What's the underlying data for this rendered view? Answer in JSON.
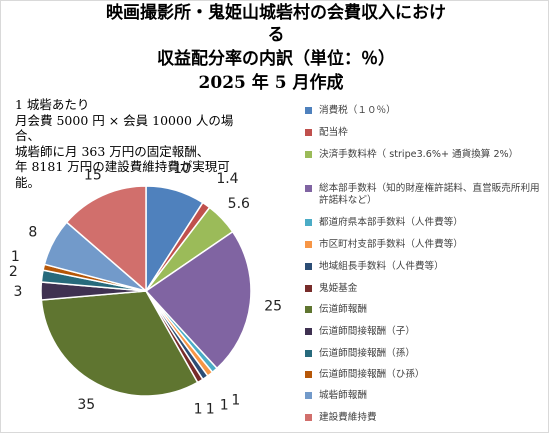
{
  "chart_data": {
    "type": "pie",
    "title_lines": [
      "映画撮影所・鬼姫山城砦村の会費収入におけ",
      "る",
      "収益配分率の内訳（単位：％）",
      "2025 年 5 月作成"
    ],
    "note_lines": [
      "1 城砦あたり",
      "月会費 5000 円 × 会員 10000 人の場",
      "合、",
      "城砦師に月 363 万円の固定報酬、",
      "年 8181 万円の建設費維持費が実現可",
      "能。"
    ],
    "categories": [
      "消費税（１０％）",
      "配当枠",
      "決済手数料枠（ stripe3.6%+ 通貨換算 2%）",
      "総本部手数料（知的財産権許諾料、直営販売所利用許諾料など）",
      "都道府県本部手数料（人件費等）",
      "市区町村支部手数料（人件費等）",
      "地域組長手数料（人件費等）",
      "鬼姫基金",
      "伝道師報酬",
      "伝道師間接報酬（子）",
      "伝道師間接報酬（孫）",
      "伝道師間接報酬（ひ孫）",
      "城砦師報酬",
      "建設費維持費"
    ],
    "values": [
      10,
      1.4,
      5.6,
      25,
      1,
      1,
      1,
      1,
      35,
      3,
      2,
      1,
      8,
      15
    ],
    "data_labels": [
      "10",
      "1.4",
      "5.6",
      "25",
      "1",
      "1",
      "1",
      "1",
      "35",
      "3",
      "2",
      "1",
      "8",
      "15"
    ],
    "colors": [
      "#4f81bd",
      "#c0504d",
      "#9bbb59",
      "#8064a2",
      "#4bacc6",
      "#f79646",
      "#2c4d75",
      "#772c2a",
      "#5f7530",
      "#3f3151",
      "#276a7c",
      "#b65708",
      "#729aca",
      "#d16f6c"
    ],
    "legend_position": "right"
  }
}
